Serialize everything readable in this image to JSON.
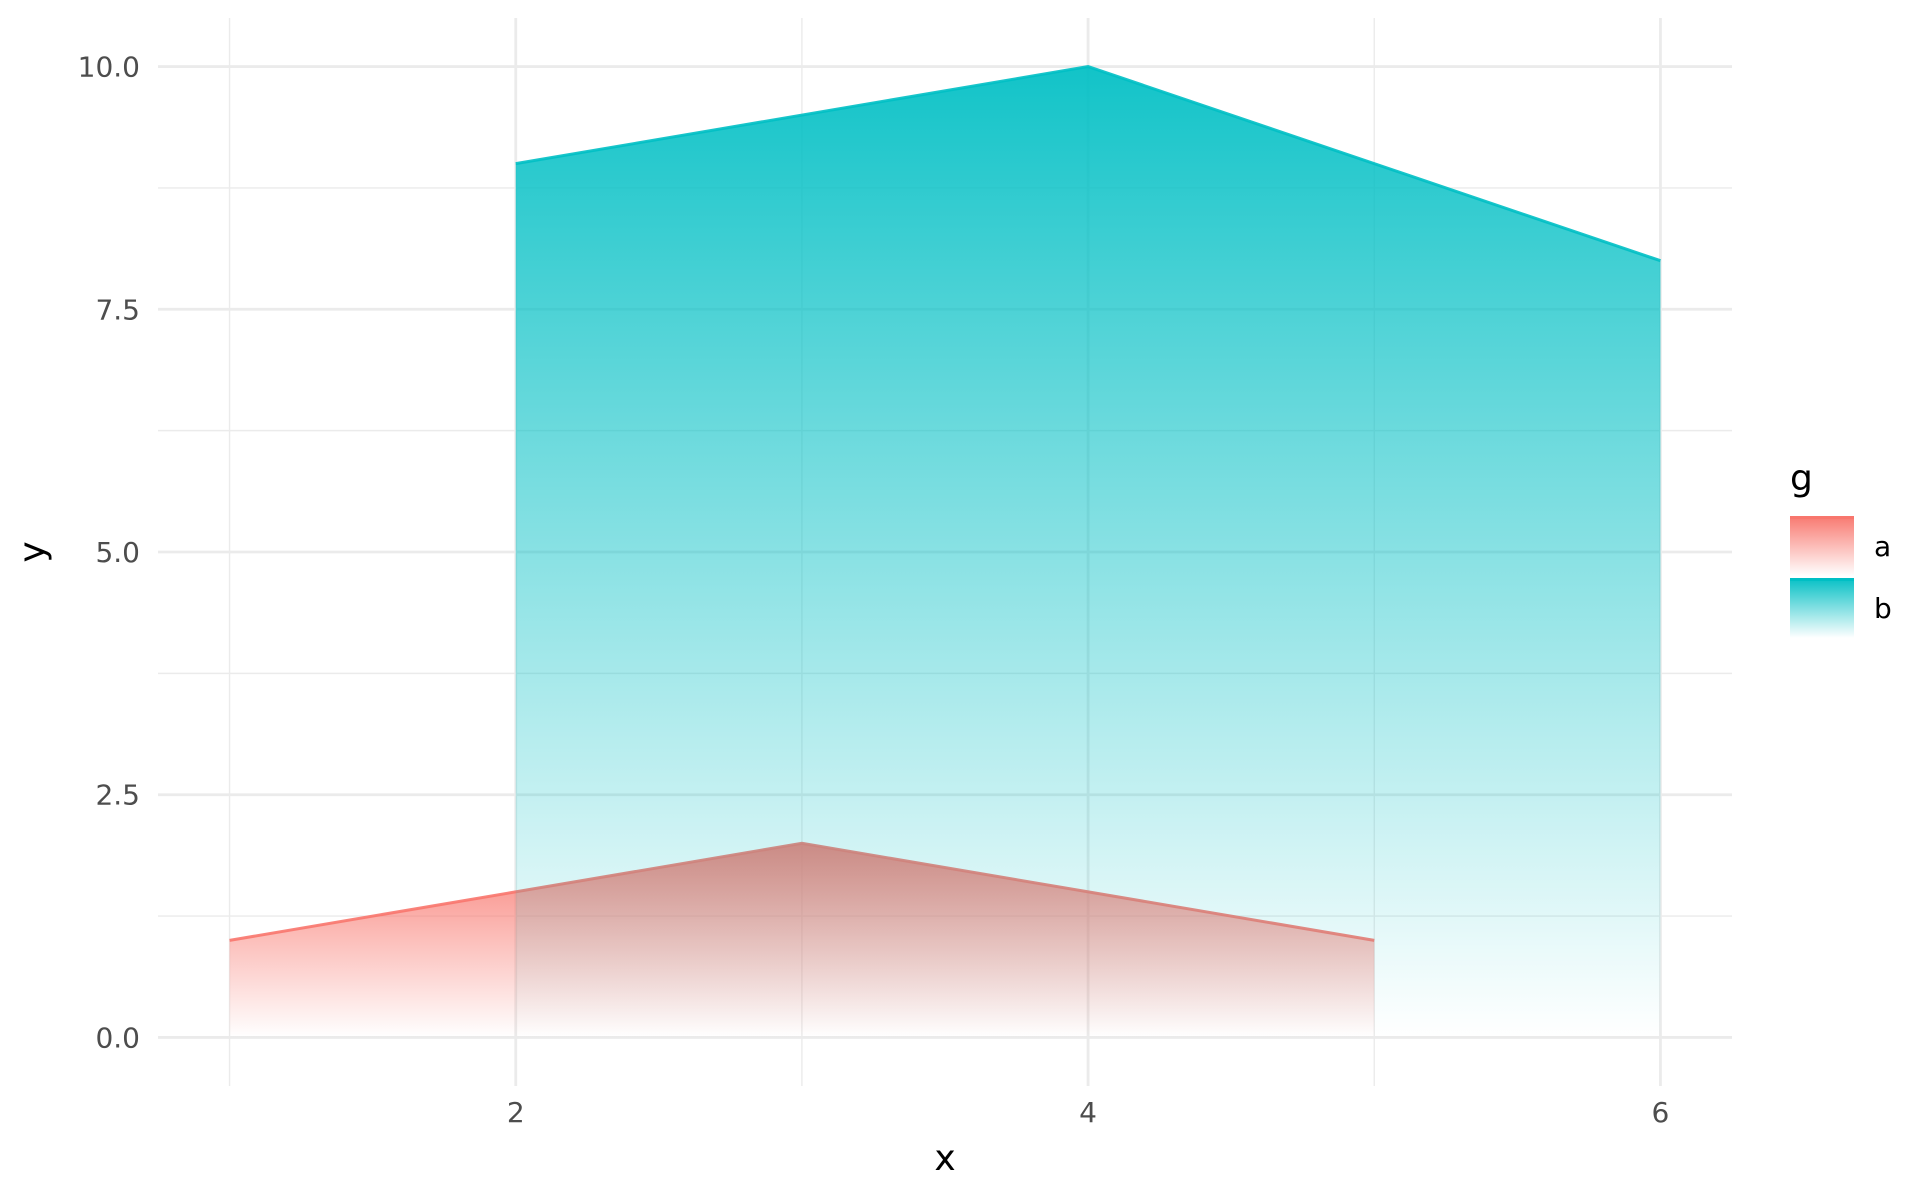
{
  "chart_data": {
    "type": "area",
    "title": "",
    "xlabel": "x",
    "ylabel": "y",
    "xlim": [
      0.75,
      6.25
    ],
    "ylim": [
      -0.5,
      10.5
    ],
    "x_ticks": [
      {
        "value": 2,
        "label": "2"
      },
      {
        "value": 4,
        "label": "4"
      },
      {
        "value": 6,
        "label": "6"
      }
    ],
    "x_minor_ticks": [
      1,
      3,
      5
    ],
    "y_ticks": [
      {
        "value": 0,
        "label": "0.0"
      },
      {
        "value": 2.5,
        "label": "2.5"
      },
      {
        "value": 5,
        "label": "5.0"
      },
      {
        "value": 7.5,
        "label": "7.5"
      },
      {
        "value": 10,
        "label": "10.0"
      }
    ],
    "y_minor_ticks": [
      1.25,
      3.75,
      6.25,
      8.75
    ],
    "grid": true,
    "legend": {
      "title": "g",
      "position": "right"
    },
    "series": [
      {
        "name": "a",
        "color": "#F8766D",
        "x": [
          1,
          3,
          5
        ],
        "y": [
          1,
          2,
          1
        ]
      },
      {
        "name": "b",
        "color": "#00BFC4",
        "x": [
          2,
          4,
          6
        ],
        "y": [
          9,
          10,
          8
        ]
      }
    ]
  }
}
